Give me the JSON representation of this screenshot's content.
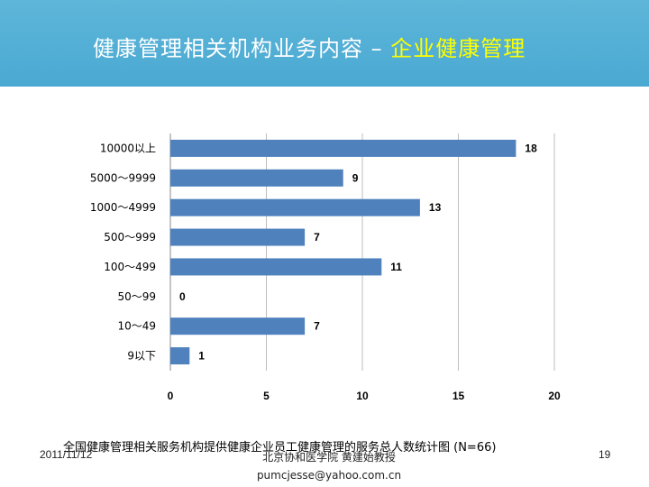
{
  "header": {
    "title_main": "健康管理相关机构业务内容 – ",
    "title_highlight": "企业健康管理"
  },
  "chart_data": {
    "type": "bar",
    "orientation": "horizontal",
    "categories": [
      "10000以上",
      "5000～9999",
      "1000～4999",
      "500～999",
      "100～499",
      "50～99",
      "10～49",
      "9以下"
    ],
    "values": [
      18,
      9,
      13,
      7,
      11,
      0,
      7,
      1
    ],
    "xlim": [
      0,
      20
    ],
    "xticks": [
      0,
      5,
      10,
      15,
      20
    ],
    "grid": "vertical",
    "data_labels": true,
    "bar_color": "#4f81bd"
  },
  "caption": "全国健康管理相关服务机构提供健康企业员工健康管理的服务总人数统计图 (N=66)",
  "footer": {
    "date": "2011/11/12",
    "author": "北京协和医学院 黄建始教授",
    "email": "pumcjesse@yahoo.com.cn",
    "page": "19"
  }
}
